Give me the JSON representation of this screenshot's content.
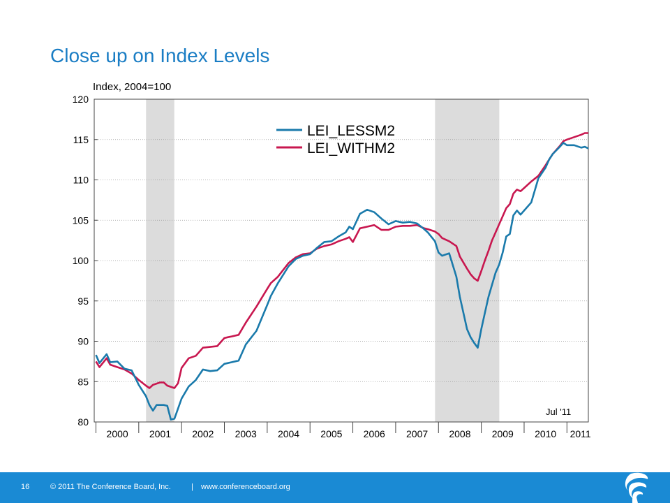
{
  "slide": {
    "title": "Close up on Index Levels"
  },
  "footer": {
    "page_number": "16",
    "copyright": "© 2011 The Conference Board, Inc.",
    "separator": "|",
    "website": "www.conferenceboard.org"
  },
  "colors": {
    "accent": "#1a7dc4",
    "footer_bar": "#1a8ad4",
    "lei_lessm2": "#1a7aab",
    "lei_withm2": "#c8174f",
    "recession_shade": "#dcdcdc"
  },
  "logo": {
    "icon": "conference-board-torch-icon"
  },
  "chart_data": {
    "type": "line",
    "title": "",
    "ylabel": "Index, 2004=100",
    "xlabel": "",
    "ylim": [
      80,
      120
    ],
    "xlim": [
      1999.96,
      2011.5
    ],
    "y_ticks": [
      "80",
      "85",
      "90",
      "95",
      "100",
      "105",
      "110",
      "115",
      "120"
    ],
    "x_tick_labels": [
      {
        "label": "2000",
        "x": 2000
      },
      {
        "label": "2001",
        "x": 2001
      },
      {
        "label": "2002",
        "x": 2002
      },
      {
        "label": "2003",
        "x": 2003
      },
      {
        "label": "2004",
        "x": 2004
      },
      {
        "label": "2005",
        "x": 2005
      },
      {
        "label": "2006",
        "x": 2006
      },
      {
        "label": "2007",
        "x": 2007
      },
      {
        "label": "2008",
        "x": 2008
      },
      {
        "label": "2009",
        "x": 2009
      },
      {
        "label": "2010",
        "x": 2010
      },
      {
        "label": "2011",
        "x": 2011
      }
    ],
    "grid": "horizontal dotted",
    "legend_position": "top-center",
    "recessions": [
      {
        "start": 2001.17,
        "end": 2001.83
      },
      {
        "start": 2007.92,
        "end": 2009.42
      }
    ],
    "annotation": "Jul '11",
    "series": [
      {
        "name": "LEI_LESSM2",
        "x": [
          2000.0,
          2000.083,
          2000.25,
          2000.333,
          2000.5,
          2000.667,
          2000.833,
          2001.0,
          2001.167,
          2001.25,
          2001.333,
          2001.417,
          2001.583,
          2001.667,
          2001.75,
          2001.833,
          2002.0,
          2002.167,
          2002.333,
          2002.5,
          2002.667,
          2002.833,
          2003.0,
          2003.083,
          2003.167,
          2003.333,
          2003.5,
          2003.75,
          2004.0,
          2004.083,
          2004.25,
          2004.5,
          2004.667,
          2004.833,
          2005.0,
          2005.167,
          2005.333,
          2005.5,
          2005.667,
          2005.833,
          2005.917,
          2006.0,
          2006.167,
          2006.333,
          2006.5,
          2006.667,
          2006.833,
          2007.0,
          2007.167,
          2007.333,
          2007.5,
          2007.667,
          2007.75,
          2007.917,
          2008.0,
          2008.083,
          2008.25,
          2008.417,
          2008.5,
          2008.667,
          2008.75,
          2008.833,
          2008.917,
          2009.0,
          2009.083,
          2009.167,
          2009.25,
          2009.333,
          2009.417,
          2009.5,
          2009.583,
          2009.667,
          2009.75,
          2009.833,
          2009.917,
          2010.0,
          2010.167,
          2010.333,
          2010.5,
          2010.583,
          2010.667,
          2010.833,
          2010.917,
          2011.0,
          2011.167,
          2011.333,
          2011.417,
          2011.5
        ],
        "values": [
          88.3,
          87.3,
          88.4,
          87.4,
          87.5,
          86.6,
          86.4,
          84.6,
          83.2,
          82.1,
          81.4,
          82.1,
          82.1,
          82.0,
          80.3,
          80.4,
          82.9,
          84.4,
          85.2,
          86.5,
          86.3,
          86.4,
          87.2,
          87.3,
          87.4,
          87.6,
          89.6,
          91.3,
          94.5,
          95.6,
          97.2,
          99.3,
          100.2,
          100.6,
          100.8,
          101.6,
          102.3,
          102.4,
          103.0,
          103.5,
          104.2,
          103.9,
          105.8,
          106.3,
          106.0,
          105.2,
          104.5,
          104.9,
          104.7,
          104.8,
          104.6,
          103.9,
          103.5,
          102.4,
          101.0,
          100.6,
          100.9,
          98.0,
          95.5,
          91.5,
          90.5,
          89.8,
          89.2,
          91.5,
          93.5,
          95.5,
          97.0,
          98.5,
          99.5,
          101.0,
          103.0,
          103.3,
          105.6,
          106.2,
          105.7,
          106.2,
          107.2,
          110.2,
          111.5,
          112.5,
          113.2,
          114.1,
          114.6,
          114.3,
          114.3,
          114.0,
          114.1,
          113.9
        ]
      },
      {
        "name": "LEI_WITHM2",
        "x": [
          2000.0,
          2000.083,
          2000.25,
          2000.333,
          2000.5,
          2000.667,
          2000.833,
          2001.0,
          2001.167,
          2001.25,
          2001.333,
          2001.5,
          2001.583,
          2001.667,
          2001.833,
          2001.917,
          2002.0,
          2002.167,
          2002.333,
          2002.5,
          2002.667,
          2002.833,
          2003.0,
          2003.083,
          2003.167,
          2003.333,
          2003.5,
          2003.75,
          2004.0,
          2004.083,
          2004.25,
          2004.5,
          2004.667,
          2004.833,
          2005.0,
          2005.167,
          2005.333,
          2005.5,
          2005.667,
          2005.833,
          2005.917,
          2006.0,
          2006.167,
          2006.333,
          2006.5,
          2006.667,
          2006.833,
          2007.0,
          2007.167,
          2007.333,
          2007.5,
          2007.667,
          2007.75,
          2007.917,
          2008.0,
          2008.083,
          2008.25,
          2008.417,
          2008.5,
          2008.667,
          2008.75,
          2008.833,
          2008.917,
          2009.0,
          2009.083,
          2009.167,
          2009.25,
          2009.333,
          2009.417,
          2009.5,
          2009.583,
          2009.667,
          2009.75,
          2009.833,
          2009.917,
          2010.0,
          2010.167,
          2010.333,
          2010.5,
          2010.583,
          2010.667,
          2010.833,
          2010.917,
          2011.0,
          2011.167,
          2011.333,
          2011.417,
          2011.5
        ],
        "values": [
          87.5,
          86.8,
          87.9,
          87.1,
          86.8,
          86.5,
          86.0,
          85.2,
          84.5,
          84.2,
          84.6,
          84.9,
          84.9,
          84.5,
          84.2,
          84.8,
          86.7,
          87.9,
          88.2,
          89.2,
          89.3,
          89.4,
          90.4,
          90.5,
          90.6,
          90.8,
          92.3,
          94.3,
          96.5,
          97.2,
          98.0,
          99.7,
          100.4,
          100.8,
          100.9,
          101.5,
          101.8,
          102.0,
          102.4,
          102.7,
          102.9,
          102.3,
          104.0,
          104.2,
          104.4,
          103.8,
          103.8,
          104.2,
          104.3,
          104.3,
          104.4,
          104.0,
          103.9,
          103.6,
          103.3,
          102.8,
          102.4,
          101.8,
          100.5,
          99.0,
          98.3,
          97.8,
          97.5,
          98.7,
          100.0,
          101.2,
          102.5,
          103.5,
          104.5,
          105.5,
          106.5,
          107.0,
          108.3,
          108.8,
          108.6,
          109.0,
          109.8,
          110.5,
          111.8,
          112.5,
          113.2,
          114.2,
          114.8,
          115.0,
          115.3,
          115.6,
          115.8,
          115.8
        ]
      }
    ]
  }
}
